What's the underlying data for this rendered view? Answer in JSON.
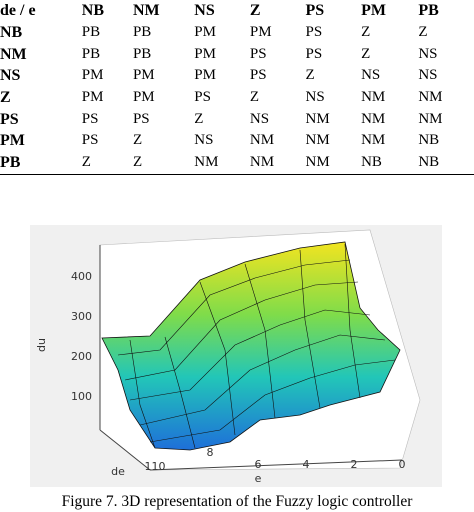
{
  "table": {
    "header": [
      "de / e",
      "NB",
      "NM",
      "NS",
      "Z",
      "PS",
      "PM",
      "PB"
    ],
    "rows": [
      [
        "NB",
        "PB",
        "PB",
        "PM",
        "PM",
        "PS",
        "Z",
        "Z"
      ],
      [
        "NM",
        "PB",
        "PB",
        "PM",
        "PS",
        "PS",
        "Z",
        "NS"
      ],
      [
        "NS",
        "PM",
        "PM",
        "PM",
        "PS",
        "Z",
        "NS",
        "NS"
      ],
      [
        "Z",
        "PM",
        "PM",
        "PS",
        "Z",
        "NS",
        "NM",
        "NM"
      ],
      [
        "PS",
        "PS",
        "PS",
        "Z",
        "NS",
        "NM",
        "NM",
        "NM"
      ],
      [
        "PM",
        "PS",
        "Z",
        "NS",
        "NM",
        "NM",
        "NM",
        "NB"
      ],
      [
        "PB",
        "Z",
        "Z",
        "NM",
        "NM",
        "NM",
        "NB",
        "NB"
      ]
    ]
  },
  "figure": {
    "z_label": "du",
    "z_ticks": [
      "400",
      "300",
      "200",
      "100"
    ],
    "de_label": "de",
    "de_ticks": [
      "110"
    ],
    "e_label": "e",
    "e_ticks": [
      "8",
      "6",
      "4",
      "2",
      "0"
    ],
    "caption": "Figure 7. 3D representation of the Fuzzy logic controller"
  }
}
